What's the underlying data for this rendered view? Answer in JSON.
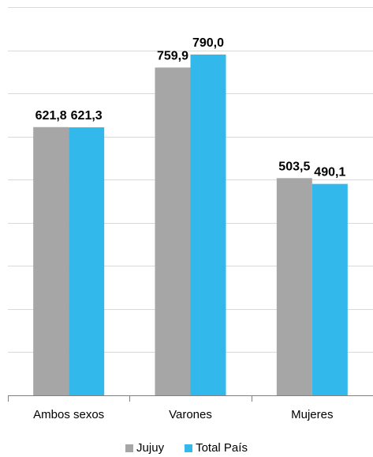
{
  "chart_data": {
    "type": "bar",
    "categories": [
      "Ambos sexos",
      "Varones",
      "Mujeres"
    ],
    "series": [
      {
        "name": "Jujuy",
        "values": [
          621.8,
          759.9,
          503.5
        ],
        "labels": [
          "621,8",
          "759,9",
          "503,5"
        ],
        "color": "#a6a6a6"
      },
      {
        "name": "Total País",
        "values": [
          621.3,
          790.0,
          490.1
        ],
        "labels": [
          "621,3",
          "790,0",
          "490,1"
        ],
        "color": "#33b8eb"
      }
    ],
    "ylim": [
      0,
      900
    ],
    "grid": true,
    "legend_position": "bottom"
  }
}
